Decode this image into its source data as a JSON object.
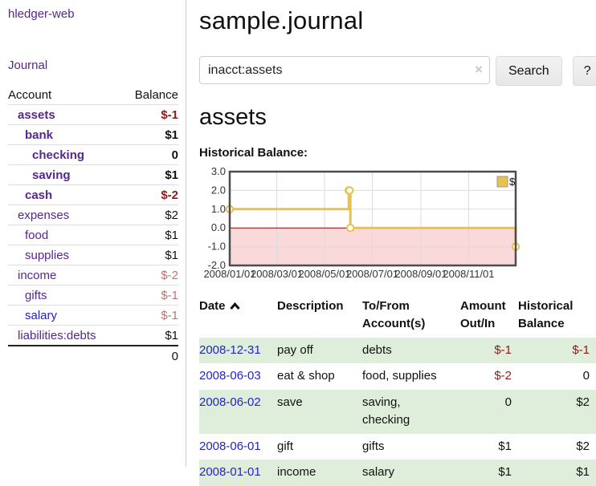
{
  "app": {
    "title": "hledger-web"
  },
  "sidebar": {
    "journal_link": "Journal",
    "headers": {
      "account": "Account",
      "balance": "Balance"
    },
    "accounts": [
      {
        "name": "assets",
        "indent": 0,
        "bold": true,
        "link_color": "purple",
        "balance": "$-1",
        "balance_style": "neg"
      },
      {
        "name": "bank",
        "indent": 1,
        "bold": true,
        "link_color": "purple",
        "balance": "$1",
        "balance_style": "normal"
      },
      {
        "name": "checking",
        "indent": 2,
        "bold": true,
        "link_color": "purple",
        "balance": "0",
        "balance_style": "normal"
      },
      {
        "name": "saving",
        "indent": 2,
        "bold": true,
        "link_color": "purple",
        "balance": "$1",
        "balance_style": "normal"
      },
      {
        "name": "cash",
        "indent": 1,
        "bold": true,
        "link_color": "purple",
        "balance": "$-2",
        "balance_style": "neg"
      },
      {
        "name": "expenses",
        "indent": 0,
        "bold": false,
        "link_color": "purple",
        "balance": "$2",
        "balance_style": "normal"
      },
      {
        "name": "food",
        "indent": 1,
        "bold": false,
        "link_color": "purple",
        "balance": "$1",
        "balance_style": "normal"
      },
      {
        "name": "supplies",
        "indent": 1,
        "bold": false,
        "link_color": "purple",
        "balance": "$1",
        "balance_style": "normal"
      },
      {
        "name": "income",
        "indent": 0,
        "bold": false,
        "link_color": "purple",
        "balance": "$-2",
        "balance_style": "muted"
      },
      {
        "name": "gifts",
        "indent": 1,
        "bold": false,
        "link_color": "purple",
        "balance": "$-1",
        "balance_style": "muted"
      },
      {
        "name": "salary",
        "indent": 1,
        "bold": false,
        "link_color": "blue",
        "balance": "$-1",
        "balance_style": "muted"
      },
      {
        "name": "liabilities:debts",
        "indent": 0,
        "bold": false,
        "link_color": "purple",
        "balance": "$1",
        "balance_style": "normal"
      }
    ],
    "total": "0"
  },
  "main": {
    "title": "sample.journal",
    "search": {
      "value": "inacct:assets",
      "clear_label": "×",
      "button_label": "Search",
      "help_label": "?"
    },
    "account_heading": "assets",
    "chart_label": "Historical Balance:"
  },
  "chart_data": {
    "type": "line",
    "step": true,
    "title": "Historical Balance",
    "series": [
      {
        "name": "$",
        "color": "#e8c24a",
        "points": [
          [
            "2008/01/01",
            1.0
          ],
          [
            "2008/06/01",
            2.0
          ],
          [
            "2008/06/02",
            2.0
          ],
          [
            "2008/06/03",
            0.0
          ],
          [
            "2008/12/31",
            -1.0
          ]
        ]
      }
    ],
    "x_range": [
      "2008/01/01",
      "2008/12/31"
    ],
    "ylim": [
      -2.0,
      3.0
    ],
    "yticks": [
      "3.0",
      "2.0",
      "1.0",
      "0.0",
      "-1.0",
      "-2.0"
    ],
    "xticks": [
      "2008/01/01",
      "2008/03/01",
      "2008/05/01",
      "2008/07/01",
      "2008/09/01",
      "2008/11/01"
    ],
    "legend": [
      "$"
    ],
    "legend_position": "top-right",
    "grid": true,
    "colors": {
      "line": "#e8c24a",
      "marker_fill": "#ffffff",
      "negative_region_fill": "#f9d9d9",
      "zero_line": "#8b0000",
      "gridline": "#dcdcdc",
      "border": "#4d4d4d",
      "tick_text": "#333333"
    }
  },
  "register": {
    "headers": {
      "date": "Date",
      "description": "Description",
      "accounts": "To/From\nAccount(s)",
      "amount": "Amount\nOut/In",
      "balance": "Historical\nBalance"
    },
    "rows": [
      {
        "date": "2008-12-31",
        "description": "pay off",
        "accounts": "debts",
        "amount": "$-1",
        "amount_neg": true,
        "balance": "$-1",
        "balance_neg": true,
        "shaded": true
      },
      {
        "date": "2008-06-03",
        "description": "eat & shop",
        "accounts": "food, supplies",
        "amount": "$-2",
        "amount_neg": true,
        "balance": "0",
        "balance_neg": false,
        "shaded": false
      },
      {
        "date": "2008-06-02",
        "description": "save",
        "accounts": "saving,\nchecking",
        "amount": "0",
        "amount_neg": false,
        "balance": "$2",
        "balance_neg": false,
        "shaded": true
      },
      {
        "date": "2008-06-01",
        "description": "gift",
        "accounts": "gifts",
        "amount": "$1",
        "amount_neg": false,
        "balance": "$2",
        "balance_neg": false,
        "shaded": false
      },
      {
        "date": "2008-01-01",
        "description": "income",
        "accounts": "salary",
        "amount": "$1",
        "amount_neg": false,
        "balance": "$1",
        "balance_neg": false,
        "shaded": true
      }
    ]
  }
}
